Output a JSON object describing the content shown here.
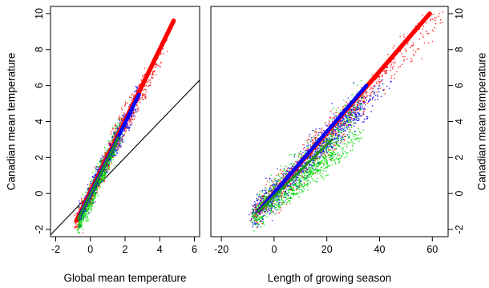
{
  "chart_data": [
    {
      "type": "scatter",
      "xlabel": "Global mean temperature",
      "ylabel": "Canadian mean temperature",
      "xlim": [
        -2.3,
        6.3
      ],
      "ylim": [
        -2.4,
        10.4
      ],
      "xticks": [
        "-2",
        "0",
        "2",
        "4",
        "6"
      ],
      "yticks": [
        "-2",
        "0",
        "2",
        "4",
        "6",
        "8",
        "10"
      ],
      "reference_line": {
        "slope": 1,
        "intercept": 0,
        "color": "#000000"
      },
      "series": [
        {
          "color": "#ff0000",
          "style": "dotted",
          "x_range": [
            -0.8,
            5.3
          ],
          "y_range": [
            -1.6,
            10.4
          ]
        },
        {
          "color": "#0000ff",
          "style": "dotted",
          "x_range": [
            -0.6,
            3.2
          ],
          "y_range": [
            -1.2,
            6.2
          ]
        },
        {
          "color": "#00dd00",
          "style": "dotted",
          "x_range": [
            -0.7,
            1.9
          ],
          "y_range": [
            -1.8,
            3.5
          ]
        },
        {
          "color": "#ff0000",
          "style": "thick-line",
          "x": [
            -0.8,
            4.8
          ],
          "y": [
            -1.5,
            9.6
          ]
        },
        {
          "color": "#0000ff",
          "style": "thick-line",
          "x": [
            -0.6,
            2.8
          ],
          "y": [
            -1.2,
            5.5
          ]
        },
        {
          "color": "#228b22",
          "style": "thick-line",
          "x": [
            -0.7,
            1.6
          ],
          "y": [
            -1.4,
            3.1
          ]
        }
      ]
    },
    {
      "type": "scatter",
      "xlabel": "Length of growing season",
      "ylabel": "Canadian mean temperature",
      "xlim": [
        -24,
        66
      ],
      "ylim": [
        -2.4,
        10.4
      ],
      "xticks": [
        "-20",
        "0",
        "20",
        "40",
        "60"
      ],
      "yticks": [
        "-2",
        "0",
        "2",
        "4",
        "6",
        "8",
        "10"
      ],
      "series": [
        {
          "color": "#ff0000",
          "style": "dotted",
          "x_range": [
            -8,
            66
          ],
          "y_range": [
            -1.2,
            10.4
          ]
        },
        {
          "color": "#0000ff",
          "style": "dotted",
          "x_range": [
            -8,
            48
          ],
          "y_range": [
            -1.2,
            6.8
          ]
        },
        {
          "color": "#00dd00",
          "style": "dotted",
          "x_range": [
            -8,
            36
          ],
          "y_range": [
            -1.2,
            3.6
          ]
        },
        {
          "color": "#ff0000",
          "style": "thick-line",
          "x": [
            -6,
            59
          ],
          "y": [
            -1.0,
            10.0
          ]
        },
        {
          "color": "#0000ff",
          "style": "thick-line",
          "x": [
            -6,
            35
          ],
          "y": [
            -1.0,
            6.0
          ]
        },
        {
          "color": "#228b22",
          "style": "thick-line",
          "x": [
            -6,
            22
          ],
          "y": [
            -1.0,
            3.0
          ]
        }
      ]
    }
  ]
}
